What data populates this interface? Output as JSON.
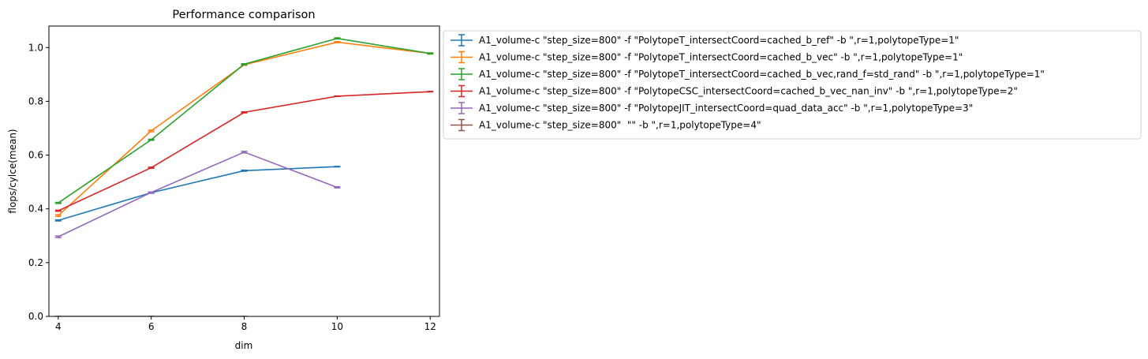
{
  "chart_data": {
    "type": "line",
    "title": "Performance comparison",
    "xlabel": "dim",
    "ylabel": "flops/cylce(mean)",
    "xlim": [
      3.8,
      12.2
    ],
    "ylim": [
      0.0,
      1.08
    ],
    "xticks": [
      4,
      6,
      8,
      10,
      12
    ],
    "yticks": [
      0.0,
      0.2,
      0.4,
      0.6,
      0.8,
      1.0
    ],
    "xtick_labels": [
      "4",
      "6",
      "8",
      "10",
      "12"
    ],
    "ytick_labels": [
      "0.0",
      "0.2",
      "0.4",
      "0.6",
      "0.8",
      "1.0"
    ],
    "grid": false,
    "error_bars": true,
    "legend_position": "outside-right-top",
    "series": [
      {
        "name": "A1_volume-c \"step_size=800\" -f \"PolytopeT_intersectCoord=cached_b_ref\" -b \",r=1,polytopeType=1\"",
        "color": "#1f77b4",
        "x": [
          4,
          6,
          8,
          10
        ],
        "y": [
          0.357,
          0.46,
          0.542,
          0.557
        ],
        "err": [
          0.002,
          0.002,
          0.002,
          0.001
        ]
      },
      {
        "name": "A1_volume-c \"step_size=800\" -f \"PolytopeT_intersectCoord=cached_b_vec\" -b \",r=1,polytopeType=1\"",
        "color": "#ff7f0e",
        "x": [
          4,
          6,
          8,
          10,
          12
        ],
        "y": [
          0.375,
          0.69,
          0.936,
          1.02,
          0.978
        ],
        "err": [
          0.003,
          0.003,
          0.002,
          0.002,
          0.002
        ]
      },
      {
        "name": "A1_volume-c \"step_size=800\" -f \"PolytopeT_intersectCoord=cached_b_vec,rand_f=std_rand\" -b \",r=1,polytopeType=1\"",
        "color": "#2ca02c",
        "x": [
          4,
          6,
          8,
          10,
          12
        ],
        "y": [
          0.422,
          0.657,
          0.938,
          1.034,
          0.978
        ],
        "err": [
          0.002,
          0.002,
          0.002,
          0.002,
          0.002
        ]
      },
      {
        "name": "A1_volume-c \"step_size=800\" -f \"PolytopeCSC_intersectCoord=cached_b_vec_nan_inv\" -b \",r=1,polytopeType=2\"",
        "color": "#d62728",
        "x": [
          4,
          6,
          8,
          10,
          12
        ],
        "y": [
          0.393,
          0.553,
          0.759,
          0.819,
          0.836
        ],
        "err": [
          0.002,
          0.002,
          0.002,
          0.001,
          0.001
        ]
      },
      {
        "name": "A1_volume-c \"step_size=800\" -f \"PolytopeJIT_intersectCoord=quad_data_acc\" -b \",r=1,polytopeType=3\"",
        "color": "#9467bd",
        "x": [
          4,
          6,
          8,
          10
        ],
        "y": [
          0.296,
          0.461,
          0.611,
          0.48
        ],
        "err": [
          0.003,
          0.002,
          0.003,
          0.002
        ]
      },
      {
        "name": "A1_volume-c \"step_size=800\"  \"\" -b \",r=1,polytopeType=4\"",
        "color": "#8c564b",
        "x": [
          4,
          6,
          8
        ],
        "y": [
          0.0,
          0.0,
          0.0
        ],
        "err": [
          0.0,
          0.0,
          0.0
        ]
      }
    ]
  }
}
